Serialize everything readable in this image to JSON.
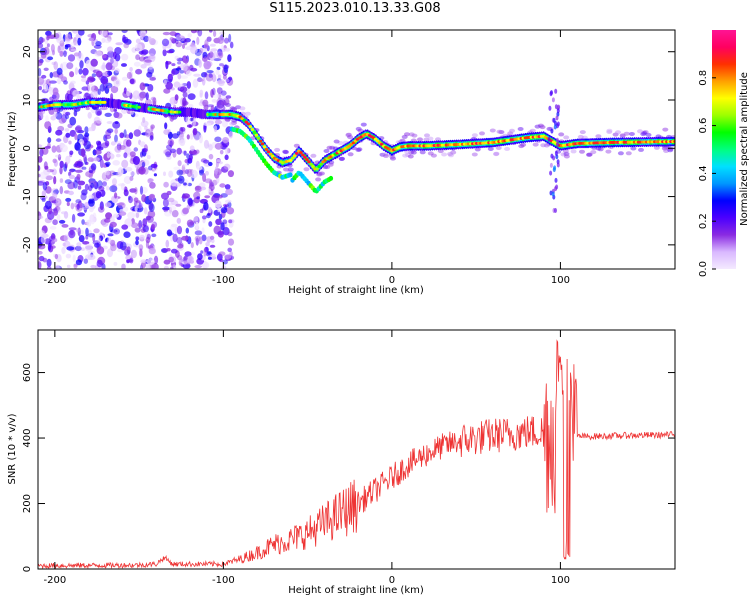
{
  "title": "S115.2023.010.13.33.G08",
  "chart_data": [
    {
      "type": "heatmap",
      "xlabel": "Height of straight line (km)",
      "ylabel": "Frequency (Hz)",
      "xlim": [
        -210,
        168
      ],
      "ylim": [
        -25,
        24.5
      ],
      "x_ticks": [
        -200,
        -100,
        0,
        100
      ],
      "y_ticks": [
        -20,
        -10,
        0,
        10,
        20
      ],
      "colorbar": {
        "label": "Normalized spectral amplitude",
        "range": [
          0,
          1
        ],
        "ticks": [
          0.0,
          0.2,
          0.4,
          0.6,
          0.8
        ],
        "colors": [
          "#f4eaff",
          "#d9b8ff",
          "#8a2be2",
          "#4b00ff",
          "#0000ff",
          "#0096ff",
          "#00e0ff",
          "#00ff80",
          "#00ff00",
          "#9cff00",
          "#ffff00",
          "#ffa000",
          "#ff3000",
          "#ff0060",
          "#ff1493"
        ]
      },
      "ridge": {
        "x": [
          -210,
          -200,
          -190,
          -180,
          -170,
          -160,
          -150,
          -140,
          -130,
          -120,
          -110,
          -100,
          -95,
          -90,
          -85,
          -80,
          -75,
          -70,
          -65,
          -60,
          -55,
          -50,
          -45,
          -40,
          -35,
          -30,
          -25,
          -20,
          -15,
          -10,
          -5,
          0,
          5,
          10,
          20,
          40,
          60,
          80,
          90,
          95,
          100,
          110,
          130,
          168
        ],
        "freq": [
          8.5,
          9,
          9,
          9.5,
          9.5,
          9,
          8.5,
          8,
          7.5,
          7.5,
          7,
          7,
          7,
          6.5,
          5,
          2.5,
          0,
          -2,
          -3,
          -2.5,
          -0.5,
          -2.5,
          -4.5,
          -2.5,
          -1.5,
          -0.5,
          0.5,
          2,
          3,
          2,
          0.5,
          -0.5,
          0.3,
          0.5,
          0.5,
          0.8,
          1.2,
          2.2,
          2.5,
          1.5,
          0.5,
          1,
          1.2,
          1.4
        ]
      }
    },
    {
      "type": "line",
      "xlabel": "Height of straight line (km)",
      "ylabel": "SNR (10 * v/v)",
      "xlim": [
        -210,
        168
      ],
      "ylim": [
        0,
        730
      ],
      "x_ticks": [
        -200,
        -100,
        0,
        100
      ],
      "y_ticks": [
        0,
        200,
        400,
        600
      ],
      "color": "#ee3333",
      "trend": {
        "x": [
          -210,
          -150,
          -140,
          -135,
          -130,
          -100,
          -90,
          -80,
          -70,
          -60,
          -50,
          -40,
          -30,
          -20,
          -10,
          0,
          10,
          20,
          30,
          40,
          50,
          60,
          70,
          80,
          90,
          95,
          100,
          105,
          110,
          120,
          140,
          168
        ],
        "y": [
          10,
          12,
          15,
          35,
          15,
          15,
          30,
          50,
          75,
          90,
          110,
          140,
          170,
          200,
          240,
          280,
          320,
          350,
          375,
          390,
          400,
          408,
          412,
          418,
          420,
          420,
          415,
          410,
          405,
          405,
          408,
          410
        ]
      },
      "peak": {
        "x": 100,
        "y": 730
      }
    }
  ]
}
